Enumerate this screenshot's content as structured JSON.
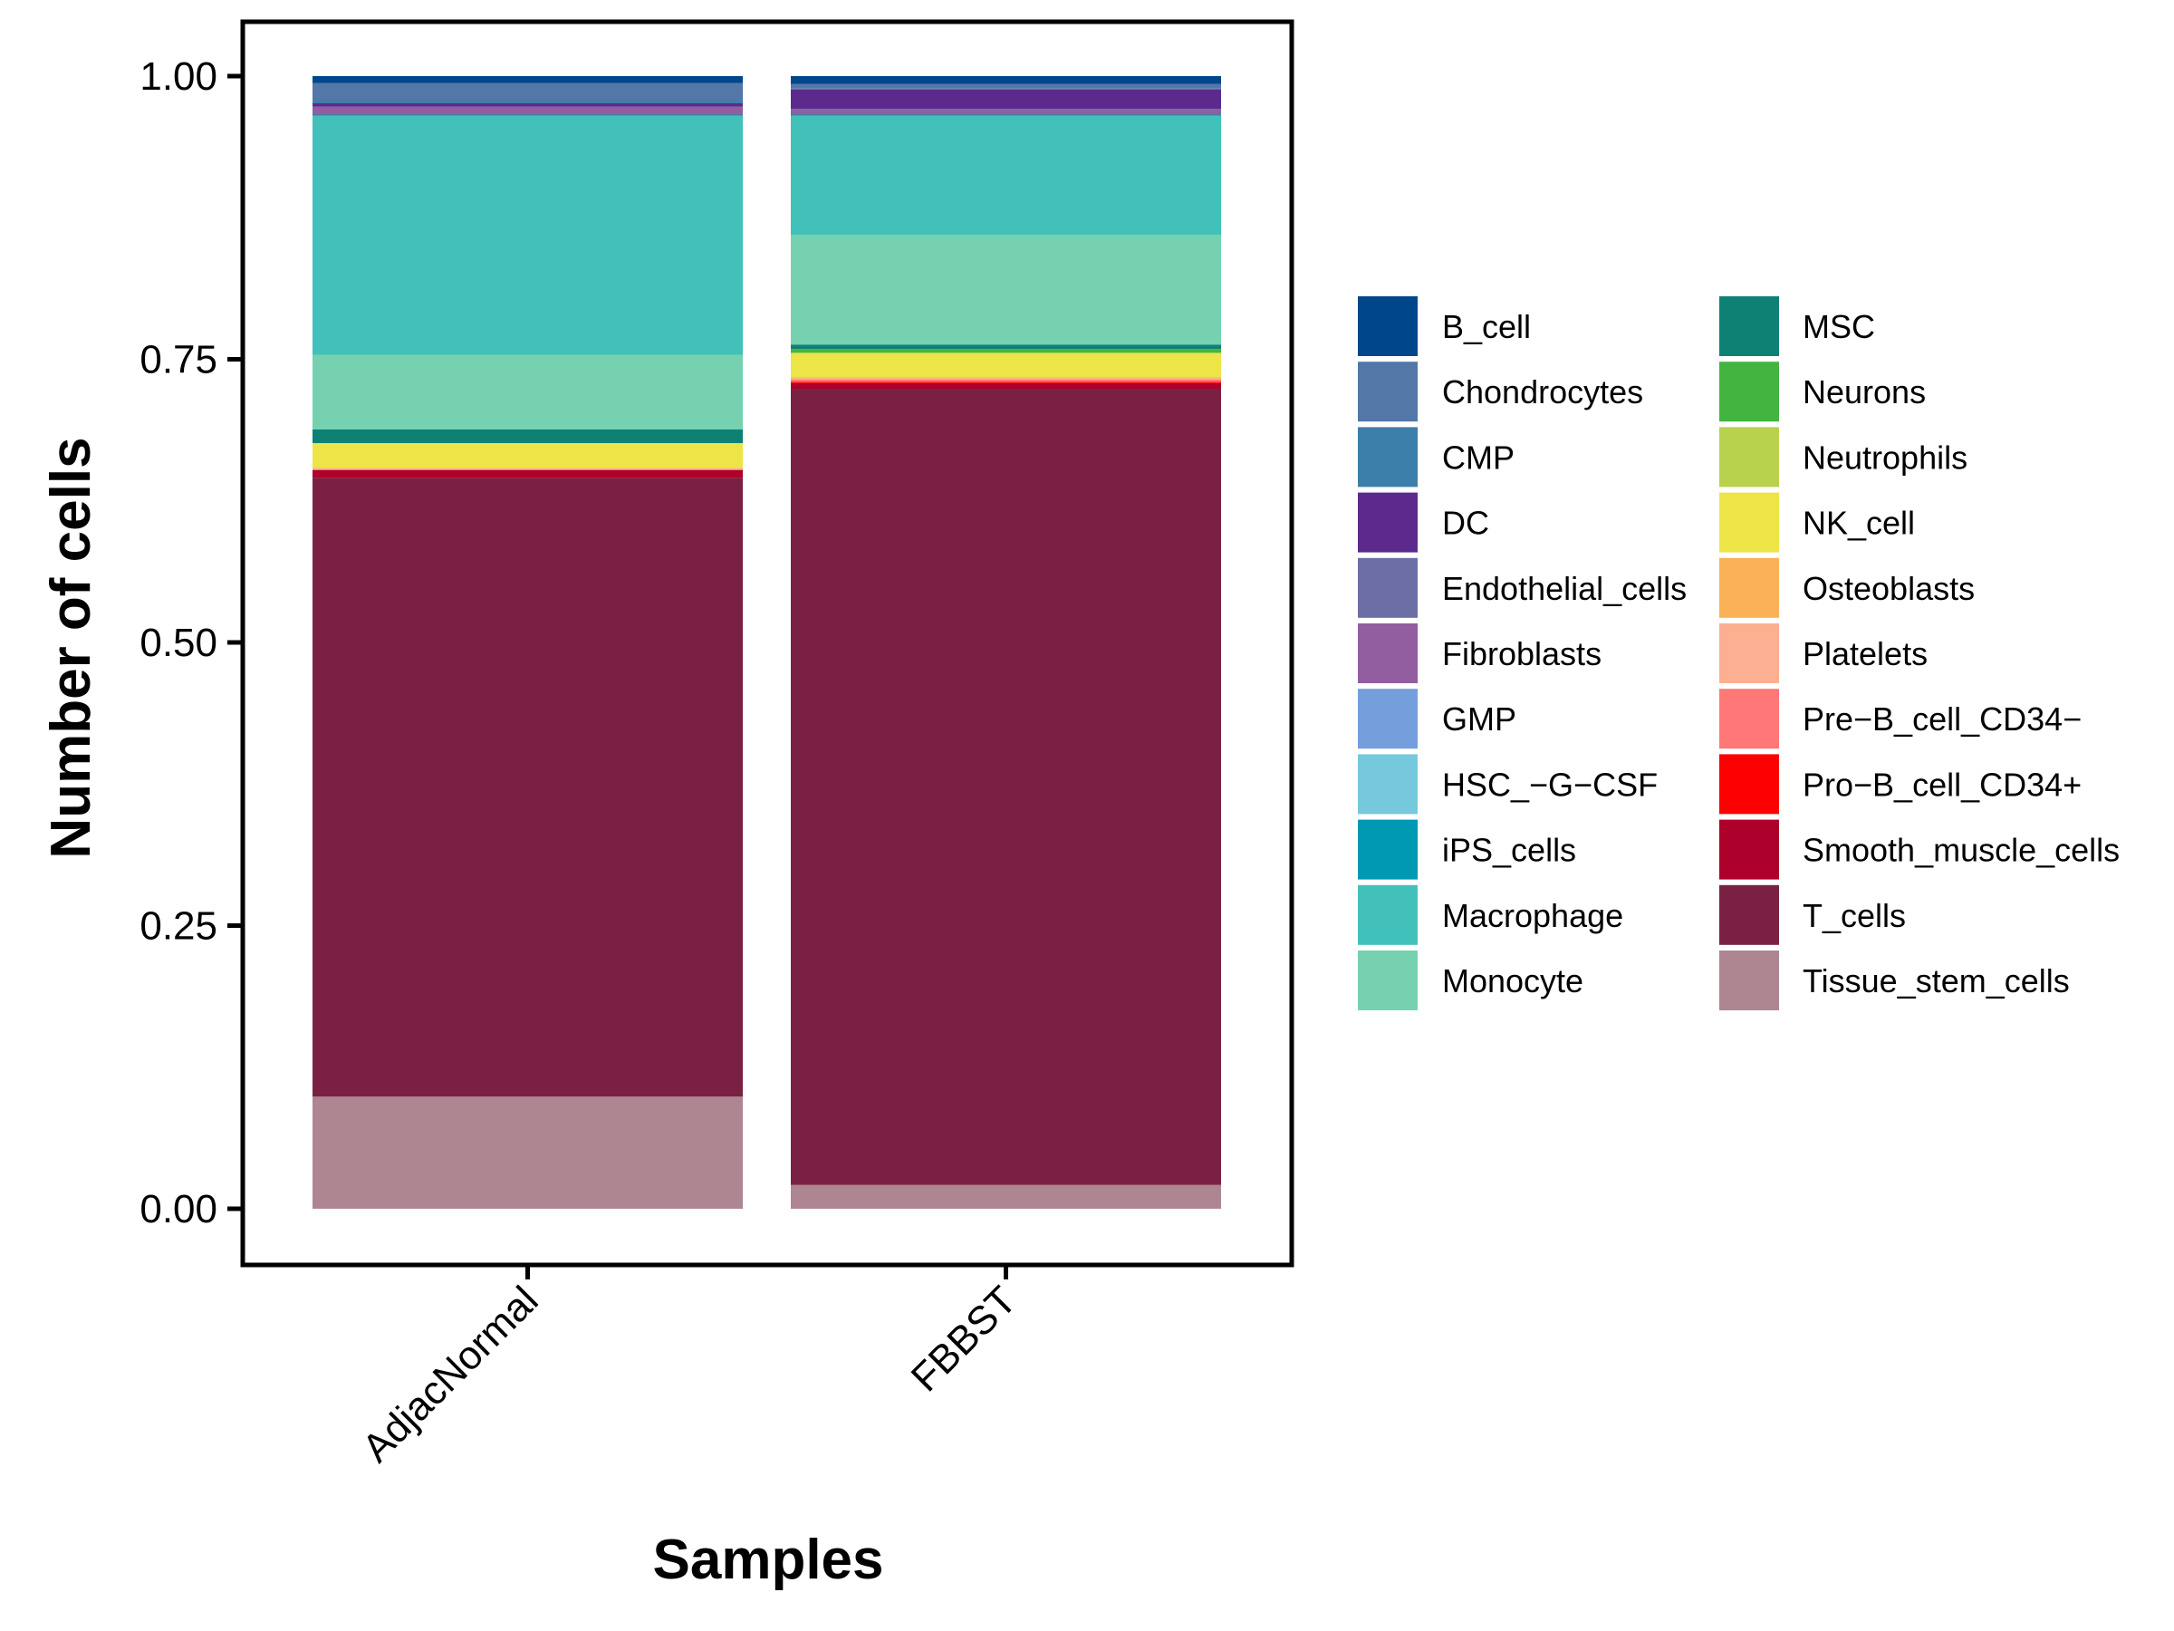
{
  "chart_data": {
    "type": "bar",
    "stacked": "fill",
    "title": "",
    "xlabel": "Samples",
    "ylabel": "Number of cells",
    "ylim": [
      0,
      1
    ],
    "yticks": [
      "0.00",
      "0.25",
      "0.50",
      "0.75",
      "1.00"
    ],
    "ytick_values": [
      0,
      0.25,
      0.5,
      0.75,
      1.0
    ],
    "categories": [
      "AdjacNormal",
      "FBBST"
    ],
    "grid": false,
    "legend_position": "right",
    "series": [
      {
        "name": "B_cell",
        "color": "#00468B",
        "values": [
          0.006,
          0.007
        ]
      },
      {
        "name": "Chondrocytes",
        "color": "#5377A7",
        "values": [
          0.016,
          0.004
        ]
      },
      {
        "name": "CMP",
        "color": "#3C7FAA",
        "values": [
          0.002,
          0.001
        ]
      },
      {
        "name": "DC",
        "color": "#5C2A8C",
        "values": [
          0.003,
          0.017
        ]
      },
      {
        "name": "Endothelial_cells",
        "color": "#6D6EA4",
        "values": [
          0.001,
          0.001
        ]
      },
      {
        "name": "Fibroblasts",
        "color": "#925E9F",
        "values": [
          0.006,
          0.004
        ]
      },
      {
        "name": "GMP",
        "color": "#759EDD",
        "values": [
          0,
          0
        ]
      },
      {
        "name": "HSC_−G−CSF",
        "color": "#76C8DC",
        "values": [
          0,
          0
        ]
      },
      {
        "name": "iPS_cells",
        "color": "#0099B4",
        "values": [
          0.001,
          0.001
        ]
      },
      {
        "name": "Macrophage",
        "color": "#42C1BB",
        "values": [
          0.211,
          0.105
        ]
      },
      {
        "name": "Monocyte",
        "color": "#76D1B1",
        "values": [
          0.066,
          0.097
        ]
      },
      {
        "name": "MSC",
        "color": "#0F8074",
        "values": [
          0.012,
          0.004
        ]
      },
      {
        "name": "Neurons",
        "color": "#42B540",
        "values": [
          0,
          0.003
        ]
      },
      {
        "name": "Neutrophils",
        "color": "#B8D24D",
        "values": [
          0,
          0.001
        ]
      },
      {
        "name": "NK_cell",
        "color": "#EDE447",
        "values": [
          0.022,
          0.021
        ]
      },
      {
        "name": "Osteoblasts",
        "color": "#FAB158",
        "values": [
          0,
          0.001
        ]
      },
      {
        "name": "Platelets",
        "color": "#FDAF91",
        "values": [
          0.001,
          0.001
        ]
      },
      {
        "name": "Pre−B_cell_CD34−",
        "color": "#FF7777",
        "values": [
          0.001,
          0.002
        ]
      },
      {
        "name": "Pro−B_cell_CD34+",
        "color": "#FD0000",
        "values": [
          0,
          0.001
        ]
      },
      {
        "name": "Smooth_muscle_cells",
        "color": "#AD002A",
        "values": [
          0.007,
          0.005
        ]
      },
      {
        "name": "T_cells",
        "color": "#7A2143",
        "values": [
          0.546,
          0.703
        ]
      },
      {
        "name": "Tissue_stem_cells",
        "color": "#AE8691",
        "values": [
          0.099,
          0.021
        ]
      }
    ]
  }
}
